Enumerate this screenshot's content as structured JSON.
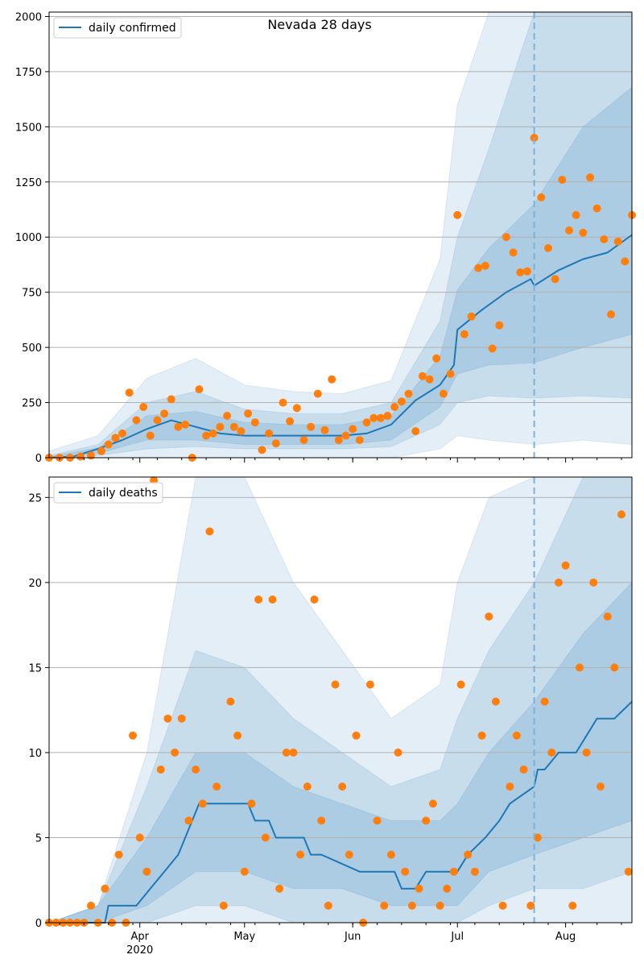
{
  "chart_data": [
    {
      "type": "line",
      "title": "Nevada 28 days",
      "xlabel": "",
      "ylabel": "",
      "x_range": [
        "2020-03-06",
        "2020-08-20"
      ],
      "ylim": [
        0,
        2020
      ],
      "yticks": [
        0,
        250,
        500,
        750,
        1000,
        1250,
        1500,
        1750,
        2000
      ],
      "xticks": [
        {
          "date": "2020-04-01",
          "label": "Apr",
          "sublabel": "2020"
        },
        {
          "date": "2020-05-01",
          "label": "May"
        },
        {
          "date": "2020-06-01",
          "label": "Jun"
        },
        {
          "date": "2020-07-01",
          "label": "Jul"
        },
        {
          "date": "2020-08-01",
          "label": "Aug"
        }
      ],
      "grid": "horizontal",
      "legend": {
        "position": "top-left",
        "entries": [
          "daily confirmed"
        ]
      },
      "forecast_start": "2020-07-23",
      "line": {
        "name": "daily confirmed",
        "x": [
          "2020-03-06",
          "2020-03-13",
          "2020-03-20",
          "2020-03-27",
          "2020-04-03",
          "2020-04-10",
          "2020-04-17",
          "2020-04-24",
          "2020-05-01",
          "2020-05-08",
          "2020-05-15",
          "2020-05-22",
          "2020-05-29",
          "2020-06-05",
          "2020-06-12",
          "2020-06-19",
          "2020-06-26",
          "2020-06-30",
          "2020-07-01",
          "2020-07-08",
          "2020-07-15",
          "2020-07-22",
          "2020-07-23",
          "2020-07-30",
          "2020-08-06",
          "2020-08-13",
          "2020-08-20"
        ],
        "values": [
          0,
          5,
          40,
          80,
          130,
          170,
          140,
          110,
          100,
          100,
          100,
          100,
          100,
          110,
          150,
          260,
          330,
          420,
          580,
          670,
          750,
          810,
          780,
          850,
          900,
          930,
          1010
        ]
      },
      "bands": [
        {
          "name": "outer",
          "x": [
            "2020-03-06",
            "2020-03-20",
            "2020-04-03",
            "2020-04-17",
            "2020-05-01",
            "2020-05-15",
            "2020-05-29",
            "2020-06-12",
            "2020-06-26",
            "2020-07-01",
            "2020-07-10",
            "2020-07-23",
            "2020-08-06",
            "2020-08-20"
          ],
          "upper": [
            30,
            100,
            360,
            450,
            330,
            300,
            290,
            350,
            900,
            1600,
            2020,
            2020,
            2020,
            2020
          ],
          "lower": [
            0,
            0,
            0,
            0,
            0,
            0,
            0,
            0,
            40,
            100,
            80,
            60,
            80,
            60
          ]
        },
        {
          "name": "middle",
          "x": [
            "2020-03-06",
            "2020-03-20",
            "2020-04-03",
            "2020-04-17",
            "2020-05-01",
            "2020-05-15",
            "2020-05-29",
            "2020-06-12",
            "2020-06-26",
            "2020-07-01",
            "2020-07-10",
            "2020-07-23",
            "2020-08-06",
            "2020-08-20"
          ],
          "upper": [
            10,
            60,
            250,
            300,
            220,
            200,
            200,
            250,
            620,
            1000,
            1400,
            2020,
            2020,
            2020
          ],
          "lower": [
            0,
            10,
            40,
            50,
            40,
            40,
            40,
            50,
            150,
            250,
            280,
            270,
            280,
            270
          ]
        },
        {
          "name": "inner",
          "x": [
            "2020-03-06",
            "2020-03-20",
            "2020-04-03",
            "2020-04-17",
            "2020-05-01",
            "2020-05-15",
            "2020-05-29",
            "2020-06-12",
            "2020-06-26",
            "2020-07-01",
            "2020-07-10",
            "2020-07-23",
            "2020-08-06",
            "2020-08-20"
          ],
          "upper": [
            5,
            45,
            190,
            210,
            160,
            150,
            150,
            190,
            460,
            760,
            950,
            1150,
            1500,
            1680
          ],
          "lower": [
            0,
            20,
            80,
            80,
            60,
            60,
            60,
            80,
            230,
            380,
            420,
            430,
            500,
            560
          ]
        }
      ],
      "scatter": {
        "x": [
          "2020-03-06",
          "2020-03-09",
          "2020-03-12",
          "2020-03-15",
          "2020-03-18",
          "2020-03-21",
          "2020-03-23",
          "2020-03-25",
          "2020-03-27",
          "2020-03-29",
          "2020-03-31",
          "2020-04-02",
          "2020-04-04",
          "2020-04-06",
          "2020-04-08",
          "2020-04-10",
          "2020-04-12",
          "2020-04-14",
          "2020-04-16",
          "2020-04-18",
          "2020-04-20",
          "2020-04-22",
          "2020-04-24",
          "2020-04-26",
          "2020-04-28",
          "2020-04-30",
          "2020-05-02",
          "2020-05-04",
          "2020-05-06",
          "2020-05-08",
          "2020-05-10",
          "2020-05-12",
          "2020-05-14",
          "2020-05-16",
          "2020-05-18",
          "2020-05-20",
          "2020-05-22",
          "2020-05-24",
          "2020-05-26",
          "2020-05-28",
          "2020-05-30",
          "2020-06-01",
          "2020-06-03",
          "2020-06-05",
          "2020-06-07",
          "2020-06-09",
          "2020-06-11",
          "2020-06-13",
          "2020-06-15",
          "2020-06-17",
          "2020-06-19",
          "2020-06-21",
          "2020-06-23",
          "2020-06-25",
          "2020-06-27",
          "2020-06-29",
          "2020-07-01",
          "2020-07-03",
          "2020-07-05",
          "2020-07-07",
          "2020-07-09",
          "2020-07-11",
          "2020-07-13",
          "2020-07-15",
          "2020-07-17",
          "2020-07-19",
          "2020-07-21",
          "2020-07-23",
          "2020-07-25",
          "2020-07-27",
          "2020-07-29",
          "2020-07-31",
          "2020-08-02",
          "2020-08-04",
          "2020-08-06",
          "2020-08-08",
          "2020-08-10",
          "2020-08-12",
          "2020-08-14",
          "2020-08-16",
          "2020-08-18",
          "2020-08-20"
        ],
        "values": [
          0,
          0,
          0,
          5,
          10,
          30,
          60,
          90,
          110,
          295,
          170,
          230,
          100,
          170,
          200,
          265,
          140,
          150,
          0,
          310,
          100,
          110,
          140,
          190,
          140,
          120,
          200,
          160,
          35,
          110,
          65,
          250,
          165,
          225,
          80,
          140,
          290,
          125,
          355,
          80,
          100,
          130,
          80,
          160,
          180,
          180,
          190,
          230,
          255,
          290,
          120,
          370,
          355,
          450,
          290,
          380,
          1100,
          560,
          640,
          860,
          870,
          495,
          600,
          1000,
          930,
          840,
          845,
          1450,
          1180,
          950,
          810,
          1260,
          1030,
          1100,
          1020,
          1270,
          1130,
          990,
          650,
          980,
          890,
          1100
        ]
      }
    },
    {
      "type": "line",
      "title": "",
      "xlabel": "",
      "ylabel": "",
      "x_range": [
        "2020-03-06",
        "2020-08-20"
      ],
      "ylim": [
        0,
        26.2
      ],
      "yticks": [
        0,
        5,
        10,
        15,
        20,
        25
      ],
      "xticks": [
        {
          "date": "2020-04-01",
          "label": "Apr",
          "sublabel": "2020"
        },
        {
          "date": "2020-05-01",
          "label": "May"
        },
        {
          "date": "2020-06-01",
          "label": "Jun"
        },
        {
          "date": "2020-07-01",
          "label": "Jul"
        },
        {
          "date": "2020-08-01",
          "label": "Aug"
        }
      ],
      "grid": "horizontal",
      "legend": {
        "position": "top-left",
        "entries": [
          "daily deaths"
        ]
      },
      "forecast_start": "2020-07-23",
      "line": {
        "name": "daily deaths",
        "x": [
          "2020-03-06",
          "2020-03-22",
          "2020-03-23",
          "2020-03-31",
          "2020-04-04",
          "2020-04-08",
          "2020-04-12",
          "2020-04-14",
          "2020-04-18",
          "2020-05-02",
          "2020-05-04",
          "2020-05-08",
          "2020-05-10",
          "2020-05-18",
          "2020-05-20",
          "2020-05-23",
          "2020-06-03",
          "2020-06-13",
          "2020-06-15",
          "2020-06-19",
          "2020-06-22",
          "2020-07-01",
          "2020-07-04",
          "2020-07-09",
          "2020-07-13",
          "2020-07-16",
          "2020-07-23",
          "2020-07-24",
          "2020-07-26",
          "2020-07-30",
          "2020-08-04",
          "2020-08-07",
          "2020-08-10",
          "2020-08-15",
          "2020-08-20"
        ],
        "values": [
          0,
          0,
          1,
          1,
          2,
          3,
          4,
          5,
          7,
          7,
          6,
          6,
          5,
          5,
          4,
          4,
          3,
          3,
          2,
          2,
          3,
          3,
          4,
          5,
          6,
          7,
          8,
          9,
          9,
          10,
          10,
          11,
          12,
          12,
          13
        ]
      },
      "bands": [
        {
          "name": "outer",
          "x": [
            "2020-03-06",
            "2020-03-20",
            "2020-04-03",
            "2020-04-17",
            "2020-05-01",
            "2020-05-15",
            "2020-05-29",
            "2020-06-12",
            "2020-06-26",
            "2020-07-01",
            "2020-07-10",
            "2020-07-23",
            "2020-08-06",
            "2020-08-20"
          ],
          "upper": [
            0,
            1,
            10,
            26.2,
            26.2,
            20,
            16,
            12,
            14,
            20,
            25,
            26.2,
            26.2,
            26.2
          ],
          "lower": [
            0,
            0,
            0,
            0,
            0,
            0,
            0,
            0,
            0,
            0,
            0,
            0,
            0,
            0
          ]
        },
        {
          "name": "middle",
          "x": [
            "2020-03-06",
            "2020-03-20",
            "2020-04-03",
            "2020-04-17",
            "2020-05-01",
            "2020-05-15",
            "2020-05-29",
            "2020-06-12",
            "2020-06-26",
            "2020-07-01",
            "2020-07-10",
            "2020-07-23",
            "2020-08-06",
            "2020-08-20"
          ],
          "upper": [
            0,
            1,
            8,
            16,
            15,
            12,
            10,
            8,
            9,
            12,
            16,
            20,
            26.2,
            26.2
          ],
          "lower": [
            0,
            0,
            0,
            1,
            1,
            0,
            0,
            0,
            0,
            0,
            1,
            2,
            2,
            3
          ]
        },
        {
          "name": "inner",
          "x": [
            "2020-03-06",
            "2020-03-20",
            "2020-04-03",
            "2020-04-17",
            "2020-05-01",
            "2020-05-15",
            "2020-05-29",
            "2020-06-12",
            "2020-06-26",
            "2020-07-01",
            "2020-07-10",
            "2020-07-23",
            "2020-08-06",
            "2020-08-20"
          ],
          "upper": [
            0,
            1,
            5,
            10,
            10,
            8,
            7,
            6,
            6,
            7,
            10,
            13,
            17,
            20
          ],
          "lower": [
            0,
            0,
            1,
            3,
            3,
            2,
            2,
            1,
            1,
            1,
            3,
            4,
            5,
            6
          ]
        }
      ],
      "scatter": {
        "x": [
          "2020-03-06",
          "2020-03-08",
          "2020-03-10",
          "2020-03-12",
          "2020-03-14",
          "2020-03-16",
          "2020-03-18",
          "2020-03-20",
          "2020-03-22",
          "2020-03-24",
          "2020-03-26",
          "2020-03-28",
          "2020-03-30",
          "2020-04-01",
          "2020-04-03",
          "2020-04-05",
          "2020-04-07",
          "2020-04-09",
          "2020-04-11",
          "2020-04-13",
          "2020-04-15",
          "2020-04-17",
          "2020-04-19",
          "2020-04-21",
          "2020-04-23",
          "2020-04-25",
          "2020-04-27",
          "2020-04-29",
          "2020-05-01",
          "2020-05-03",
          "2020-05-05",
          "2020-05-07",
          "2020-05-09",
          "2020-05-11",
          "2020-05-13",
          "2020-05-15",
          "2020-05-17",
          "2020-05-19",
          "2020-05-21",
          "2020-05-23",
          "2020-05-25",
          "2020-05-27",
          "2020-05-29",
          "2020-05-31",
          "2020-06-02",
          "2020-06-04",
          "2020-06-06",
          "2020-06-08",
          "2020-06-10",
          "2020-06-12",
          "2020-06-14",
          "2020-06-16",
          "2020-06-18",
          "2020-06-20",
          "2020-06-22",
          "2020-06-24",
          "2020-06-26",
          "2020-06-28",
          "2020-06-30",
          "2020-07-02",
          "2020-07-04",
          "2020-07-06",
          "2020-07-08",
          "2020-07-10",
          "2020-07-12",
          "2020-07-14",
          "2020-07-16",
          "2020-07-18",
          "2020-07-20",
          "2020-07-22",
          "2020-07-24",
          "2020-07-26",
          "2020-07-28",
          "2020-07-30",
          "2020-08-01",
          "2020-08-03",
          "2020-08-05",
          "2020-08-07",
          "2020-08-09",
          "2020-08-11",
          "2020-08-13",
          "2020-08-15",
          "2020-08-17",
          "2020-08-19"
        ],
        "values": [
          0,
          0,
          0,
          0,
          0,
          0,
          1,
          0,
          2,
          0,
          4,
          0,
          11,
          5,
          3,
          26,
          9,
          12,
          10,
          12,
          6,
          9,
          7,
          23,
          8,
          1,
          13,
          11,
          3,
          7,
          19,
          5,
          19,
          2,
          10,
          10,
          4,
          8,
          19,
          6,
          1,
          14,
          8,
          4,
          11,
          0,
          14,
          6,
          1,
          4,
          10,
          3,
          1,
          2,
          6,
          7,
          1,
          2,
          3,
          14,
          4,
          3,
          11,
          18,
          13,
          1,
          8,
          11,
          9,
          1,
          5,
          13,
          10,
          20,
          21,
          1,
          15,
          10,
          20,
          8,
          18,
          15,
          24,
          3
        ]
      }
    }
  ],
  "colors": {
    "line": "#1f77b4",
    "band": "#1f77b4",
    "points": "#ff7f0e",
    "grid": "#b0b0b0",
    "forecast_line": "#7fb0d6"
  }
}
